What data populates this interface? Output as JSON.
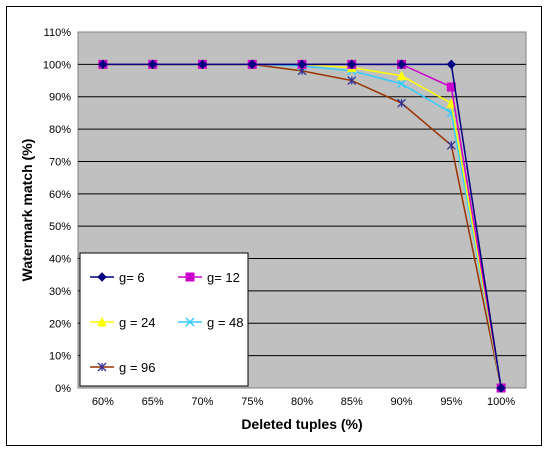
{
  "chart_data": {
    "type": "line",
    "xlabel": "Deleted tuples (%)",
    "ylabel": "Watermark match (%)",
    "categories": [
      "60%",
      "65%",
      "70%",
      "75%",
      "80%",
      "85%",
      "90%",
      "95%",
      "100%"
    ],
    "ylim": [
      0,
      110
    ],
    "yticks": [
      "0%",
      "10%",
      "20%",
      "30%",
      "40%",
      "50%",
      "60%",
      "70%",
      "80%",
      "90%",
      "100%",
      "110%"
    ],
    "grid": true,
    "legend_position": "bottom-left",
    "series": [
      {
        "name": "g= 6",
        "color": "#000080",
        "marker": "diamond",
        "values": [
          100,
          100,
          100,
          100,
          100,
          100,
          100,
          100,
          0
        ]
      },
      {
        "name": "g= 12",
        "color": "#cc00cc",
        "marker": "square",
        "values": [
          100,
          100,
          100,
          100,
          100,
          100,
          100,
          93,
          0
        ]
      },
      {
        "name": "g = 24",
        "color": "#ffff00",
        "marker": "triangle",
        "values": [
          100,
          100,
          100,
          100,
          100,
          99,
          96.5,
          88,
          0
        ]
      },
      {
        "name": "g = 48",
        "color": "#33ccff",
        "marker": "x",
        "values": [
          100,
          100,
          100,
          100,
          99.5,
          98,
          94,
          85,
          0
        ]
      },
      {
        "name": "g = 96",
        "color": "#993300",
        "marker": "star",
        "values": [
          100,
          100,
          100,
          100,
          98,
          95,
          88,
          75,
          0
        ]
      }
    ]
  }
}
